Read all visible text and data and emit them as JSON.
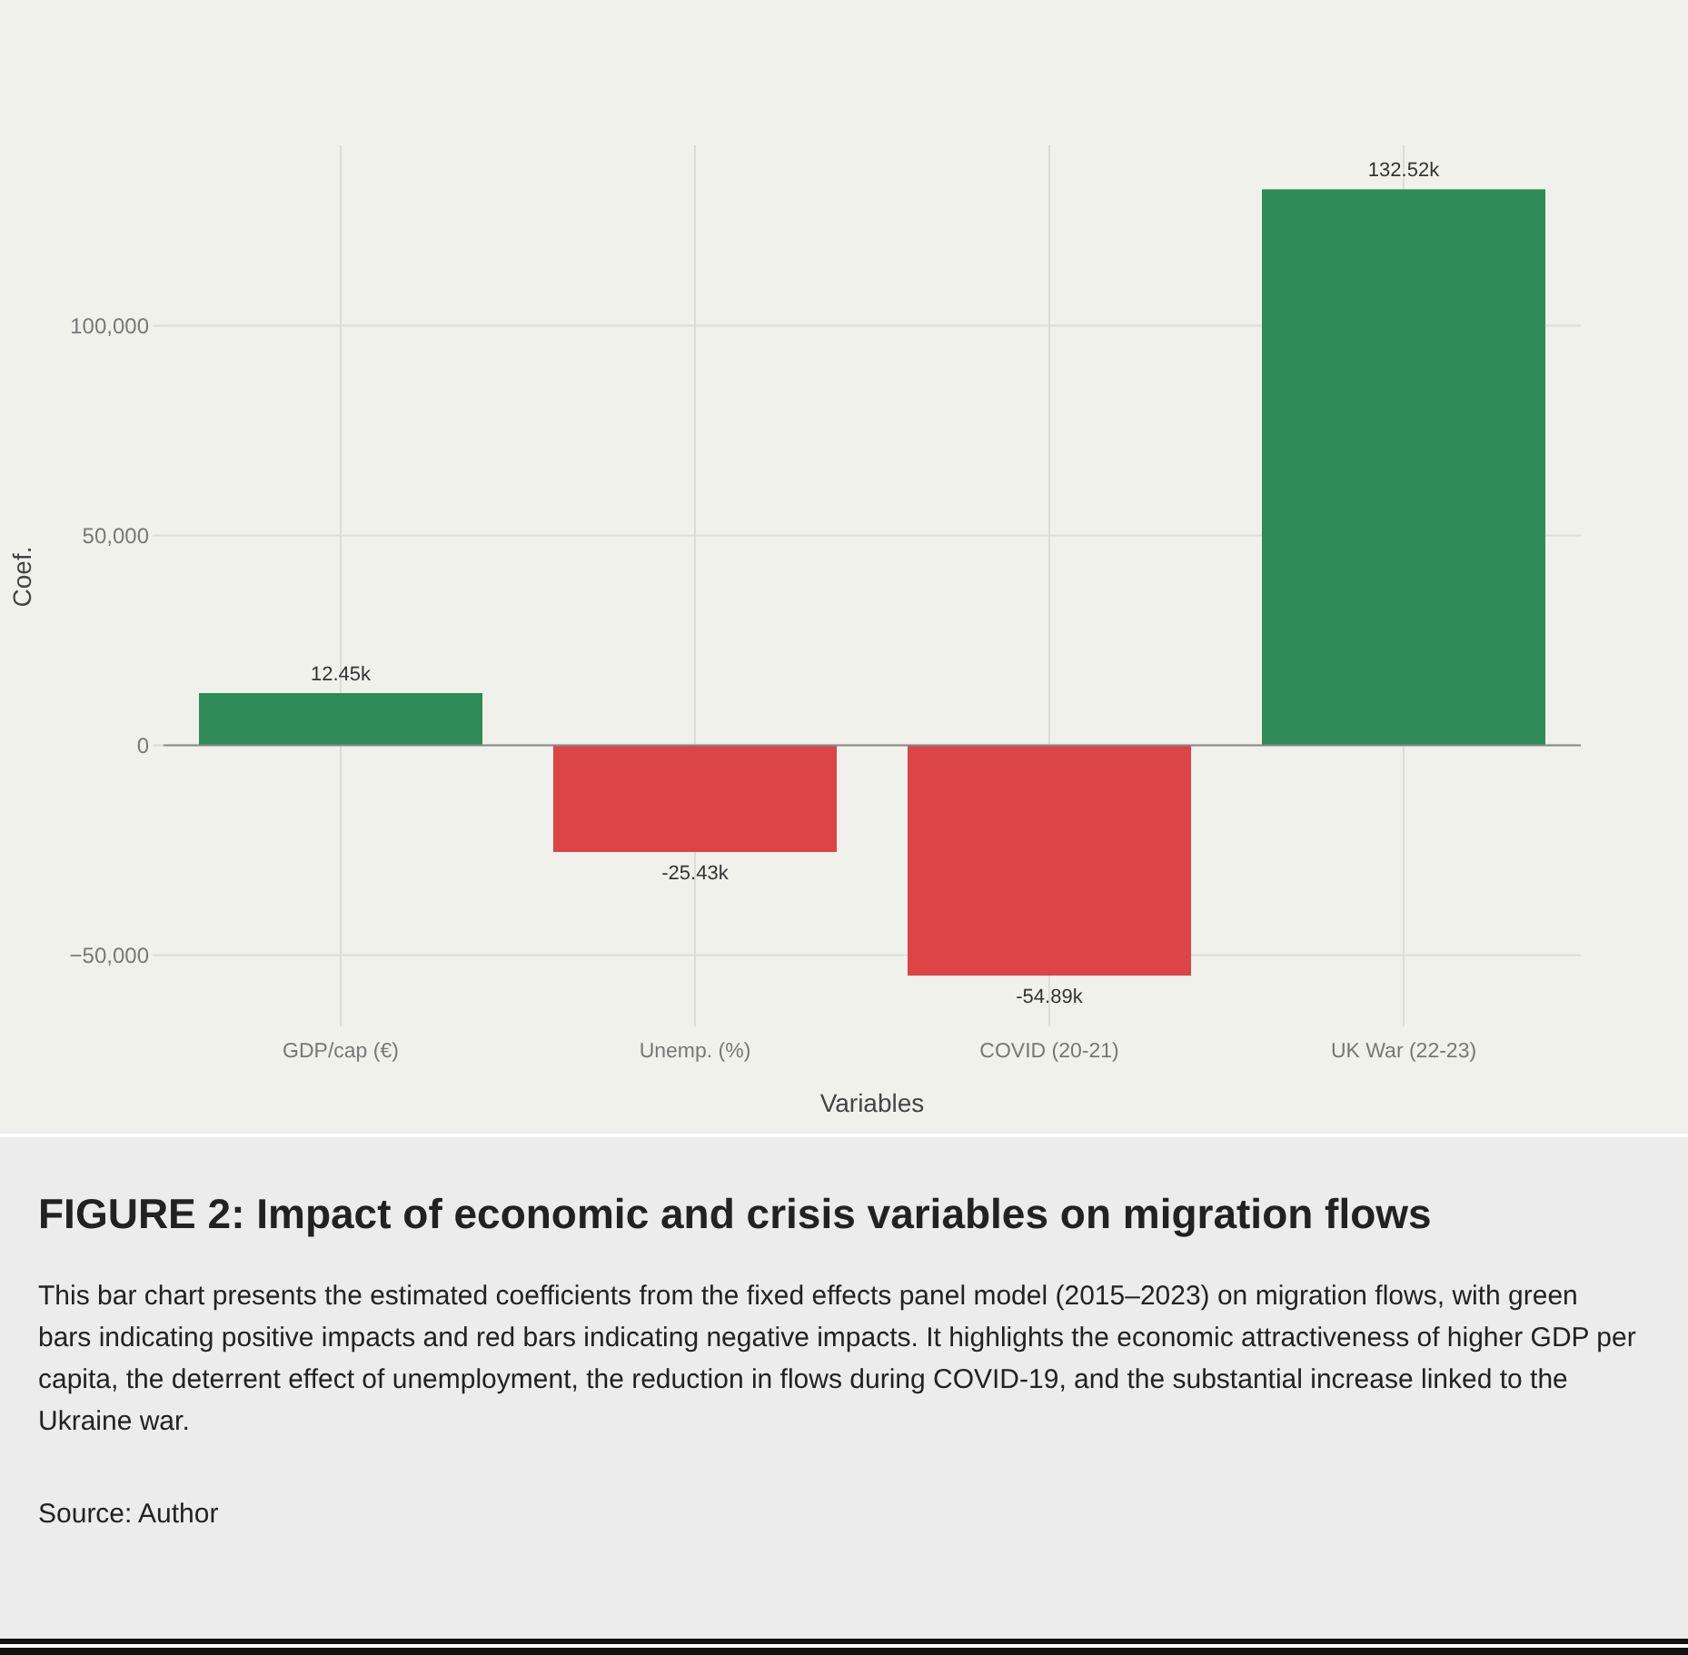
{
  "chart_data": {
    "type": "bar",
    "title": "FIGURE 2: Impact of economic and crisis variables on migration flows",
    "subtitle": "This bar chart presents the estimated coefficients from the fixed effects panel model (2015–2023) on migration flows, with green bars indicating positive impacts and red bars indicating negative impacts. It highlights the economic attractiveness of higher GDP per capita, the deterrent effect of unemployment, the reduction in flows during COVID-19, and the substantial increase linked to the Ukraine war.",
    "annotations": [
      "Source: Author"
    ],
    "xlabel": "Variables",
    "ylabel": "Coef.",
    "categories": [
      "GDP/cap (€)",
      "Unemp. (%)",
      "COVID (20-21)",
      "UK War (22-23)"
    ],
    "values": [
      12450,
      -25430,
      -54890,
      132520
    ],
    "colors": [
      "#2e8b57",
      "#dc4446",
      "#dc4446",
      "#2e8b57"
    ],
    "value_labels": [
      "12.45k",
      "-25.43k",
      "-54.89k",
      "132.52k"
    ],
    "ylim": [
      -67000,
      143000
    ],
    "yticks": [
      {
        "value": -50000,
        "label": "−50,000"
      },
      {
        "value": 0,
        "label": "0"
      },
      {
        "value": 50000,
        "label": "50,000"
      },
      {
        "value": 100000,
        "label": "100,000"
      }
    ],
    "grid": true
  }
}
